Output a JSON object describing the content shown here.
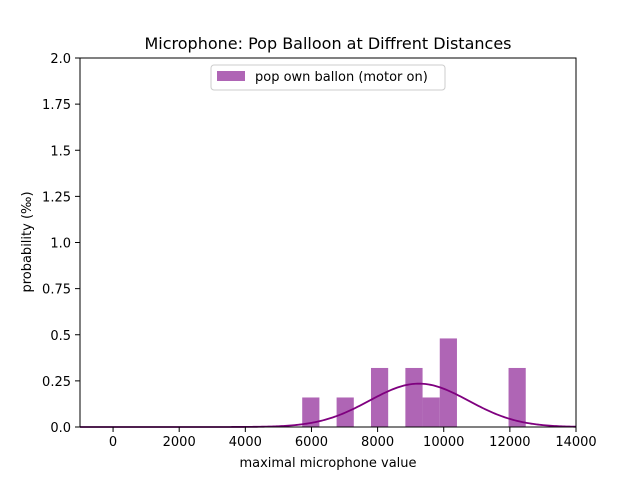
{
  "colors": {
    "bar": "#9b3fa3",
    "curve": "#7f007f",
    "axes": "#000000",
    "background": "#ffffff",
    "legend_border": "#cccccc"
  },
  "chart_data": {
    "type": "bar",
    "title": "Microphone: Pop Balloon at Diffrent Distances",
    "xlabel": "maximal microphone value",
    "ylabel": "probability (‰)",
    "xlim": [
      -1000,
      14000
    ],
    "ylim": [
      0,
      2.0
    ],
    "x_ticks": [
      0,
      2000,
      4000,
      6000,
      8000,
      10000,
      12000,
      14000
    ],
    "x_tick_labels": [
      "0",
      "2000",
      "4000",
      "6000",
      "8000",
      "10000",
      "12000",
      "14000"
    ],
    "y_ticks": [
      0,
      0.25,
      0.5,
      0.75,
      1.0,
      1.25,
      1.5,
      1.75,
      2.0
    ],
    "y_tick_labels": [
      "0.0",
      "0.25",
      "0.5",
      "0.75",
      "1.0",
      "1.25",
      "1.5",
      "1.75",
      "2.0"
    ],
    "legend": {
      "location": "upper center",
      "label": "pop own ballon (motor on)"
    },
    "grid": false,
    "histogram": {
      "series_label": "pop own ballon (motor on)",
      "bin_width": 520,
      "bins": [
        {
          "start": 5720,
          "value": 0.16
        },
        {
          "start": 6760,
          "value": 0.16
        },
        {
          "start": 7800,
          "value": 0.32
        },
        {
          "start": 8840,
          "value": 0.32
        },
        {
          "start": 9360,
          "value": 0.16
        },
        {
          "start": 9880,
          "value": 0.48
        },
        {
          "start": 11960,
          "value": 0.32
        }
      ]
    },
    "fit_curve": {
      "type": "normal",
      "mean": 9250,
      "std": 1500,
      "peak": 0.235,
      "x_range": [
        -1000,
        14000
      ]
    }
  }
}
